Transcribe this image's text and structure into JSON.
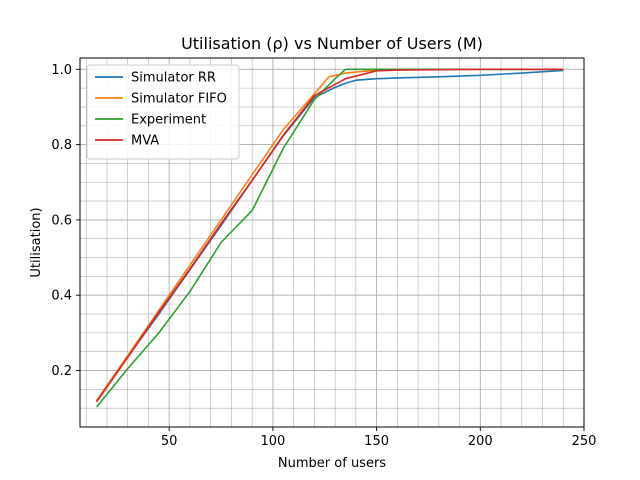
{
  "chart_data": {
    "type": "line",
    "title": "Utilisation (ρ) vs Number of Users (M)",
    "xlabel": "Number of users",
    "ylabel": "Utilisation)",
    "xlim": [
      7,
      250
    ],
    "ylim": [
      0.05,
      1.03
    ],
    "xticks": [
      50,
      100,
      150,
      200,
      250
    ],
    "yticks": [
      0.2,
      0.4,
      0.6,
      0.8,
      1.0
    ],
    "xtick_labels": [
      "50",
      "100",
      "150",
      "200",
      "250"
    ],
    "ytick_labels": [
      "0.2",
      "0.4",
      "0.6",
      "0.8",
      "1.0"
    ],
    "grid": true,
    "minor_grid": true,
    "legend_position": "upper-left",
    "series": [
      {
        "name": "Simulator RR",
        "color": "#1f77b4",
        "x": [
          15,
          30,
          45,
          60,
          75,
          90,
          105,
          120,
          130,
          135,
          140,
          150,
          160,
          180,
          200,
          220,
          240
        ],
        "y": [
          0.12,
          0.236,
          0.35,
          0.468,
          0.585,
          0.705,
          0.823,
          0.925,
          0.952,
          0.963,
          0.971,
          0.975,
          0.977,
          0.98,
          0.984,
          0.99,
          0.997
        ]
      },
      {
        "name": "Simulator FIFO",
        "color": "#ff7f0e",
        "x": [
          15,
          30,
          45,
          60,
          75,
          90,
          105,
          120,
          127,
          135,
          150,
          180,
          240
        ],
        "y": [
          0.12,
          0.24,
          0.36,
          0.48,
          0.6,
          0.72,
          0.84,
          0.935,
          0.98,
          0.99,
          0.998,
          1.0,
          1.0
        ]
      },
      {
        "name": "Experiment",
        "color": "#2ca02c",
        "x": [
          15,
          30,
          45,
          60,
          75,
          90,
          105,
          120,
          130,
          135,
          140,
          150,
          180,
          240
        ],
        "y": [
          0.103,
          0.205,
          0.3,
          0.41,
          0.54,
          0.625,
          0.79,
          0.92,
          0.975,
          1.0,
          1.0,
          1.0,
          1.0,
          1.0
        ]
      },
      {
        "name": "MVA",
        "color": "#d62728",
        "x": [
          15,
          30,
          45,
          60,
          75,
          90,
          105,
          120,
          135,
          150,
          160,
          180,
          200,
          240
        ],
        "y": [
          0.117,
          0.235,
          0.355,
          0.47,
          0.59,
          0.705,
          0.825,
          0.93,
          0.975,
          0.996,
          0.998,
          0.999,
          1.0,
          1.0
        ]
      }
    ]
  }
}
